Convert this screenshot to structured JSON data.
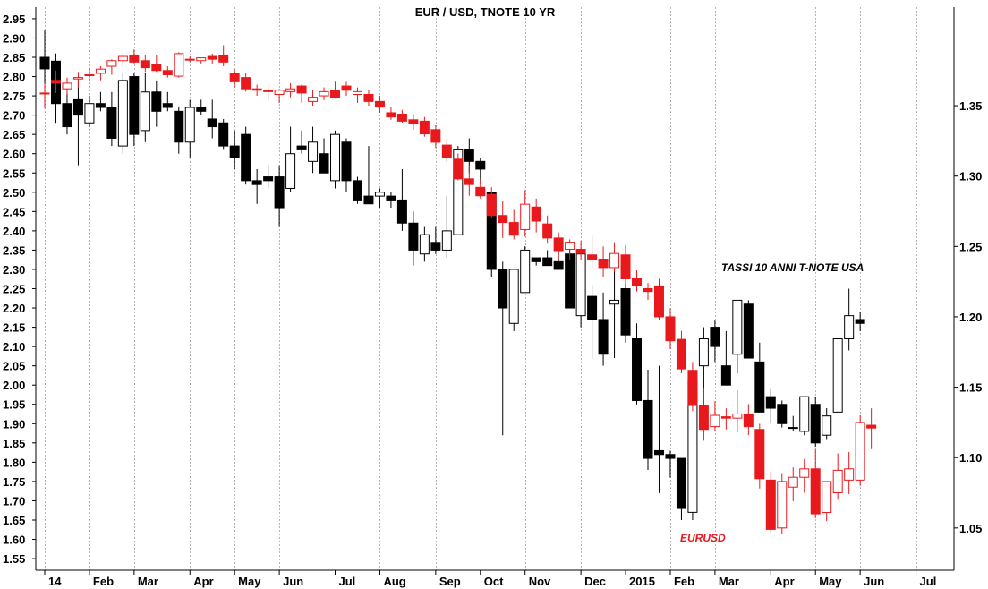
{
  "chart_data": {
    "type": "candlestick",
    "title": "EUR / USD, TNOTE 10 YR",
    "annotations": {
      "tnote_label": "TASSI 10 ANNI T-NOTE USA",
      "eurusd_label": "EURUSD"
    },
    "x_axis": {
      "labels": [
        "14",
        "Feb",
        "Mar",
        "Apr",
        "May",
        "Jun",
        "Jul",
        "Aug",
        "Sep",
        "Oct",
        "Nov",
        "Dec",
        "2015",
        "Feb",
        "Mar",
        "Apr",
        "May",
        "Jun",
        "Jul"
      ],
      "label_weeks": [
        0,
        4,
        8,
        13,
        17,
        21,
        26,
        30,
        35,
        39,
        43,
        48,
        52,
        56,
        60,
        65,
        69,
        73,
        78
      ],
      "week_range": [
        0,
        81
      ],
      "grid": true
    },
    "left_axis": {
      "series": "T-Note 10Y yield",
      "range": [
        1.52,
        2.98
      ],
      "ticks": [
        "2.95",
        "2.90",
        "2.85",
        "2.80",
        "2.75",
        "2.70",
        "2.65",
        "2.60",
        "2.55",
        "2.50",
        "2.45",
        "2.40",
        "2.35",
        "2.30",
        "2.25",
        "2.20",
        "2.15",
        "2.10",
        "2.05",
        "2.00",
        "1.95",
        "1.90",
        "1.85",
        "1.80",
        "1.75",
        "1.70",
        "1.65",
        "1.60",
        "1.55"
      ]
    },
    "right_axis": {
      "series": "EUR/USD",
      "range": [
        1.02,
        1.42
      ],
      "ticks": [
        "1.35",
        "1.30",
        "1.25",
        "1.20",
        "1.15",
        "1.10",
        "1.05"
      ]
    },
    "colors": {
      "tnote_down": "#000000",
      "tnote_up": "#ffffff",
      "eurusd": "#e8191c",
      "grid": "#b4b4b4",
      "background": "#ffffff"
    },
    "tnote_weekly_ohlc": [
      [
        2.85,
        2.92,
        2.74,
        2.82
      ],
      [
        2.84,
        2.86,
        2.68,
        2.73
      ],
      [
        2.73,
        2.76,
        2.65,
        2.67
      ],
      [
        2.74,
        2.79,
        2.57,
        2.7
      ],
      [
        2.68,
        2.75,
        2.67,
        2.73
      ],
      [
        2.73,
        2.76,
        2.71,
        2.72
      ],
      [
        2.72,
        2.76,
        2.62,
        2.64
      ],
      [
        2.62,
        2.81,
        2.6,
        2.79
      ],
      [
        2.8,
        2.81,
        2.62,
        2.65
      ],
      [
        2.66,
        2.81,
        2.63,
        2.76
      ],
      [
        2.76,
        2.79,
        2.67,
        2.71
      ],
      [
        2.73,
        2.76,
        2.71,
        2.72
      ],
      [
        2.71,
        2.72,
        2.6,
        2.63
      ],
      [
        2.63,
        2.74,
        2.59,
        2.72
      ],
      [
        2.72,
        2.74,
        2.7,
        2.71
      ],
      [
        2.69,
        2.74,
        2.64,
        2.67
      ],
      [
        2.68,
        2.69,
        2.61,
        2.62
      ],
      [
        2.62,
        2.66,
        2.56,
        2.59
      ],
      [
        2.65,
        2.67,
        2.52,
        2.53
      ],
      [
        2.53,
        2.56,
        2.47,
        2.52
      ],
      [
        2.54,
        2.57,
        2.51,
        2.53
      ],
      [
        2.54,
        2.57,
        2.41,
        2.46
      ],
      [
        2.51,
        2.67,
        2.5,
        2.6
      ],
      [
        2.62,
        2.66,
        2.6,
        2.61
      ],
      [
        2.58,
        2.67,
        2.55,
        2.63
      ],
      [
        2.6,
        2.64,
        2.55,
        2.55
      ],
      [
        2.53,
        2.66,
        2.51,
        2.65
      ],
      [
        2.63,
        2.64,
        2.5,
        2.53
      ],
      [
        2.53,
        2.54,
        2.47,
        2.48
      ],
      [
        2.49,
        2.62,
        2.47,
        2.47
      ],
      [
        2.49,
        2.51,
        2.46,
        2.5
      ],
      [
        2.49,
        2.5,
        2.46,
        2.48
      ],
      [
        2.48,
        2.56,
        2.4,
        2.42
      ],
      [
        2.42,
        2.45,
        2.31,
        2.35
      ],
      [
        2.34,
        2.41,
        2.32,
        2.39
      ],
      [
        2.37,
        2.41,
        2.34,
        2.35
      ],
      [
        2.35,
        2.49,
        2.33,
        2.4
      ],
      [
        2.39,
        2.62,
        2.39,
        2.61
      ],
      [
        2.61,
        2.64,
        2.55,
        2.58
      ],
      [
        2.58,
        2.59,
        2.52,
        2.56
      ],
      [
        2.5,
        2.5,
        2.28,
        2.3
      ],
      [
        2.3,
        2.32,
        1.87,
        2.2
      ],
      [
        2.16,
        2.3,
        2.14,
        2.3
      ],
      [
        2.24,
        2.36,
        2.25,
        2.35
      ],
      [
        2.33,
        2.33,
        2.31,
        2.32
      ],
      [
        2.33,
        2.35,
        2.31,
        2.31
      ],
      [
        2.32,
        2.38,
        2.3,
        2.3
      ],
      [
        2.34,
        2.36,
        2.2,
        2.2
      ],
      [
        2.18,
        2.35,
        2.15,
        2.34
      ],
      [
        2.23,
        2.26,
        2.07,
        2.17
      ],
      [
        2.17,
        2.24,
        2.05,
        2.08
      ],
      [
        2.21,
        2.31,
        2.07,
        2.22
      ],
      [
        2.25,
        2.27,
        2.11,
        2.13
      ],
      [
        2.12,
        2.16,
        1.95,
        1.96
      ],
      [
        1.96,
        2.04,
        1.78,
        1.81
      ],
      [
        1.83,
        2.05,
        1.72,
        1.82
      ],
      [
        1.82,
        1.83,
        1.76,
        1.81
      ],
      [
        1.81,
        1.81,
        1.65,
        1.68
      ],
      [
        1.67,
        2.0,
        1.65,
        2.01
      ],
      [
        2.05,
        2.15,
        1.9,
        2.12
      ],
      [
        2.15,
        2.17,
        2.06,
        2.1
      ],
      [
        2.05,
        2.14,
        2.0,
        2.0
      ],
      [
        2.08,
        2.22,
        2.03,
        2.22
      ],
      [
        2.21,
        2.22,
        2.07,
        2.07
      ],
      [
        2.06,
        2.11,
        1.93,
        1.93
      ],
      [
        1.97,
        1.99,
        1.9,
        1.94
      ],
      [
        1.95,
        1.96,
        1.89,
        1.9
      ],
      [
        1.89,
        1.92,
        1.88,
        1.89
      ],
      [
        1.88,
        1.97,
        1.87,
        1.97
      ],
      [
        1.95,
        1.97,
        1.84,
        1.85
      ],
      [
        1.87,
        1.94,
        1.86,
        1.92
      ],
      [
        1.93,
        2.12,
        1.94,
        2.12
      ],
      [
        2.12,
        2.25,
        2.09,
        2.18
      ],
      [
        2.17,
        2.19,
        2.14,
        2.16
      ]
    ],
    "eurusd_weekly_ohlc": [
      [
        1.359,
        1.366,
        1.348,
        1.359
      ],
      [
        1.368,
        1.375,
        1.359,
        1.366
      ],
      [
        1.362,
        1.37,
        1.358,
        1.366
      ],
      [
        1.369,
        1.374,
        1.363,
        1.37
      ],
      [
        1.372,
        1.377,
        1.368,
        1.372
      ],
      [
        1.373,
        1.378,
        1.368,
        1.376
      ],
      [
        1.378,
        1.383,
        1.372,
        1.382
      ],
      [
        1.382,
        1.387,
        1.378,
        1.385
      ],
      [
        1.386,
        1.39,
        1.38,
        1.381
      ],
      [
        1.382,
        1.386,
        1.374,
        1.377
      ],
      [
        1.379,
        1.386,
        1.374,
        1.375
      ],
      [
        1.375,
        1.378,
        1.37,
        1.372
      ],
      [
        1.371,
        1.388,
        1.37,
        1.387
      ],
      [
        1.383,
        1.385,
        1.381,
        1.383
      ],
      [
        1.382,
        1.384,
        1.38,
        1.384
      ],
      [
        1.385,
        1.387,
        1.38,
        1.383
      ],
      [
        1.386,
        1.393,
        1.378,
        1.381
      ],
      [
        1.373,
        1.376,
        1.363,
        1.367
      ],
      [
        1.37,
        1.373,
        1.36,
        1.362
      ],
      [
        1.362,
        1.365,
        1.357,
        1.361
      ],
      [
        1.361,
        1.364,
        1.354,
        1.36
      ],
      [
        1.358,
        1.362,
        1.352,
        1.361
      ],
      [
        1.36,
        1.366,
        1.356,
        1.362
      ],
      [
        1.364,
        1.365,
        1.352,
        1.359
      ],
      [
        1.353,
        1.361,
        1.35,
        1.356
      ],
      [
        1.357,
        1.363,
        1.354,
        1.36
      ],
      [
        1.361,
        1.367,
        1.355,
        1.356
      ],
      [
        1.364,
        1.367,
        1.357,
        1.361
      ],
      [
        1.358,
        1.363,
        1.352,
        1.36
      ],
      [
        1.358,
        1.361,
        1.35,
        1.353
      ],
      [
        1.353,
        1.357,
        1.345,
        1.349
      ],
      [
        1.345,
        1.349,
        1.34,
        1.342
      ],
      [
        1.344,
        1.347,
        1.338,
        1.339
      ],
      [
        1.34,
        1.344,
        1.333,
        1.337
      ],
      [
        1.339,
        1.342,
        1.328,
        1.33
      ],
      [
        1.333,
        1.336,
        1.32,
        1.324
      ],
      [
        1.322,
        1.326,
        1.31,
        1.313
      ],
      [
        1.312,
        1.316,
        1.297,
        1.298
      ],
      [
        1.298,
        1.307,
        1.286,
        1.294
      ],
      [
        1.292,
        1.298,
        1.284,
        1.286
      ],
      [
        1.287,
        1.292,
        1.27,
        1.272
      ],
      [
        1.272,
        1.282,
        1.256,
        1.267
      ],
      [
        1.267,
        1.276,
        1.255,
        1.258
      ],
      [
        1.262,
        1.29,
        1.257,
        1.28
      ],
      [
        1.278,
        1.284,
        1.26,
        1.268
      ],
      [
        1.266,
        1.272,
        1.252,
        1.256
      ],
      [
        1.256,
        1.26,
        1.241,
        1.247
      ],
      [
        1.248,
        1.255,
        1.24,
        1.253
      ],
      [
        1.248,
        1.254,
        1.24,
        1.245
      ],
      [
        1.244,
        1.258,
        1.235,
        1.241
      ],
      [
        1.241,
        1.25,
        1.228,
        1.235
      ],
      [
        1.235,
        1.253,
        1.232,
        1.245
      ],
      [
        1.244,
        1.251,
        1.222,
        1.227
      ],
      [
        1.227,
        1.233,
        1.218,
        1.222
      ],
      [
        1.22,
        1.224,
        1.212,
        1.218
      ],
      [
        1.222,
        1.227,
        1.198,
        1.2
      ],
      [
        1.2,
        1.206,
        1.177,
        1.183
      ],
      [
        1.184,
        1.19,
        1.16,
        1.163
      ],
      [
        1.162,
        1.168,
        1.133,
        1.137
      ],
      [
        1.137,
        1.149,
        1.112,
        1.12
      ],
      [
        1.122,
        1.14,
        1.119,
        1.13
      ],
      [
        1.129,
        1.135,
        1.12,
        1.128
      ],
      [
        1.128,
        1.148,
        1.118,
        1.131
      ],
      [
        1.131,
        1.138,
        1.116,
        1.122
      ],
      [
        1.12,
        1.124,
        1.078,
        1.085
      ],
      [
        1.084,
        1.09,
        1.047,
        1.049
      ],
      [
        1.05,
        1.089,
        1.046,
        1.083
      ],
      [
        1.079,
        1.093,
        1.069,
        1.086
      ],
      [
        1.086,
        1.099,
        1.075,
        1.092
      ],
      [
        1.092,
        1.106,
        1.057,
        1.06
      ],
      [
        1.061,
        1.083,
        1.055,
        1.083
      ],
      [
        1.075,
        1.103,
        1.07,
        1.091
      ],
      [
        1.084,
        1.104,
        1.074,
        1.092
      ],
      [
        1.084,
        1.13,
        1.08,
        1.125
      ],
      [
        1.123,
        1.135,
        1.106,
        1.121
      ]
    ]
  }
}
